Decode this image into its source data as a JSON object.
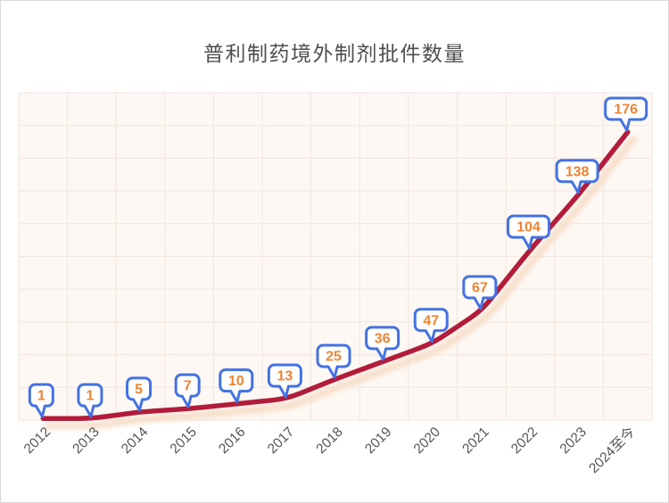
{
  "chart_data": {
    "type": "line",
    "title": "普利制药境外制剂批件数量",
    "categories": [
      "2012",
      "2013",
      "2014",
      "2015",
      "2016",
      "2017",
      "2018",
      "2019",
      "2020",
      "2021",
      "2022",
      "2023",
      "2024至今"
    ],
    "values": [
      1,
      1,
      5,
      7,
      10,
      13,
      25,
      36,
      47,
      67,
      104,
      138,
      176
    ],
    "ylim": [
      0,
      200
    ],
    "y_gridline_step": 20,
    "grid": "on",
    "legend": "none",
    "x_label_rotation": -45,
    "data_label_style": "callout-bubble",
    "colors": {
      "title_text": "#4e4e4e",
      "axis_label_text": "#555555",
      "series_line": "#b21c3a",
      "series_line_shadow": "#f6dcc6",
      "plot_background": "#fdf8f3",
      "gridline": "#f3e5dd",
      "callout_border": "#4472e2",
      "callout_fill": "#ffffff",
      "callout_text": "#ec8433",
      "canvas_border": "#d8d8d8"
    }
  }
}
